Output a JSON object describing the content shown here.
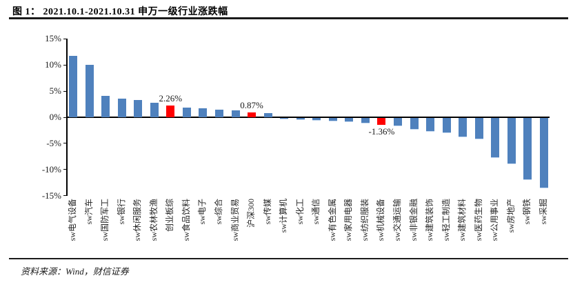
{
  "header": {
    "title": "图 1： 2021.10.1-2021.10.31 申万一级行业涨跌幅"
  },
  "footer": {
    "source": "资料来源：Wind，财信证券"
  },
  "colors": {
    "bar_default": "#4F81BD",
    "bar_highlight": "#FF0000",
    "axis": "#000000",
    "negative_bar_edge": "#c5d9f1"
  },
  "chart_data": {
    "type": "bar",
    "title": "2021.10.1-2021.10.31 申万一级行业涨跌幅",
    "xlabel": "",
    "ylabel": "",
    "ylim": [
      -15,
      15
    ],
    "ytick_interval": 5,
    "yticks": [
      "15%",
      "10%",
      "5%",
      "0%",
      "-5%",
      "-10%",
      "-15%"
    ],
    "grid": false,
    "legend": false,
    "bars": [
      {
        "label": "sw电气设备",
        "value": 11.8
      },
      {
        "label": "sw汽车",
        "value": 10.0
      },
      {
        "label": "sw国防军工",
        "value": 4.1
      },
      {
        "label": "sw银行",
        "value": 3.5
      },
      {
        "label": "sw休闲服务",
        "value": 3.3
      },
      {
        "label": "sw农林牧渔",
        "value": 2.8
      },
      {
        "label": "创业板综",
        "value": 2.26,
        "highlight": true,
        "data_label": "2.26%",
        "label_position": "above"
      },
      {
        "label": "sw食品饮料",
        "value": 1.9
      },
      {
        "label": "sw电子",
        "value": 1.7
      },
      {
        "label": "sw综合",
        "value": 1.5
      },
      {
        "label": "sw商业贸易",
        "value": 1.3
      },
      {
        "label": "沪深300",
        "value": 0.87,
        "highlight": true,
        "data_label": "0.87%",
        "label_position": "above"
      },
      {
        "label": "sw传媒",
        "value": 0.8
      },
      {
        "label": "sw计算机",
        "value": -0.1
      },
      {
        "label": "sw化工",
        "value": -0.35
      },
      {
        "label": "sw通信",
        "value": -0.4
      },
      {
        "label": "sw有色金属",
        "value": -0.5
      },
      {
        "label": "sw家用电器",
        "value": -0.65
      },
      {
        "label": "sw纺织服装",
        "value": -1.0
      },
      {
        "label": "sw机械设备",
        "value": -1.36,
        "highlight": true,
        "data_label": "-1.36%",
        "label_position": "below"
      },
      {
        "label": "sw交通运输",
        "value": -1.55
      },
      {
        "label": "sw非银金融",
        "value": -2.1
      },
      {
        "label": "sw建筑装饰",
        "value": -2.5
      },
      {
        "label": "sw轻工制造",
        "value": -2.8
      },
      {
        "label": "sw建筑材料",
        "value": -3.6
      },
      {
        "label": "sw医药生物",
        "value": -4.0
      },
      {
        "label": "sw公用事业",
        "value": -7.6
      },
      {
        "label": "sw房地产",
        "value": -8.8
      },
      {
        "label": "sw钢铁",
        "value": -11.8
      },
      {
        "label": "sw采掘",
        "value": -13.3
      }
    ]
  }
}
